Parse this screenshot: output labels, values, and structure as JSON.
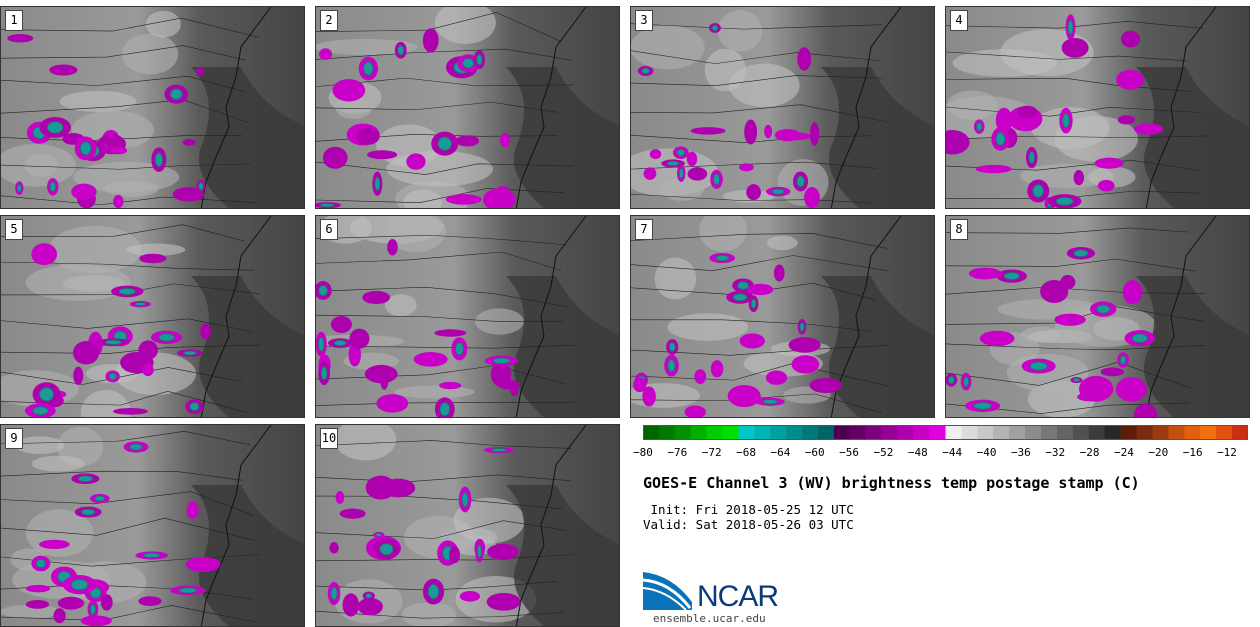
{
  "panels": [
    {
      "label": "1"
    },
    {
      "label": "2"
    },
    {
      "label": "3"
    },
    {
      "label": "4"
    },
    {
      "label": "5"
    },
    {
      "label": "6"
    },
    {
      "label": "7"
    },
    {
      "label": "8"
    },
    {
      "label": "9"
    },
    {
      "label": "10"
    }
  ],
  "colorbar": {
    "colors": [
      "#006400",
      "#007a00",
      "#009000",
      "#00b000",
      "#00cc00",
      "#00e000",
      "#00c8c8",
      "#00b4b4",
      "#00a0a0",
      "#008c8c",
      "#007878",
      "#006464",
      "#4b0050",
      "#640064",
      "#7d007d",
      "#960096",
      "#af00af",
      "#c800c8",
      "#e100e1",
      "#f0f0f0",
      "#dcdcdc",
      "#c8c8c8",
      "#b4b4b4",
      "#a0a0a0",
      "#8c8c8c",
      "#787878",
      "#646464",
      "#505050",
      "#3c3c3c",
      "#282828",
      "#5a1e0a",
      "#7a2a0e",
      "#9a3a12",
      "#c45010",
      "#e06010",
      "#f07010",
      "#e05010",
      "#c83010"
    ],
    "tick_labels": [
      "−80",
      "−76",
      "−72",
      "−68",
      "−64",
      "−60",
      "−56",
      "−52",
      "−48",
      "−44",
      "−40",
      "−36",
      "−32",
      "−28",
      "−24",
      "−20",
      "−16",
      "−12"
    ]
  },
  "title": "GOES-E Channel 3 (WV) brightness temp postage stamp (C)",
  "init": " Init: Fri 2018-05-25 12 UTC",
  "valid": "Valid: Sat 2018-05-26 03 UTC",
  "logo": {
    "text": "NCAR",
    "url": "ensemble.ucar.edu"
  }
}
